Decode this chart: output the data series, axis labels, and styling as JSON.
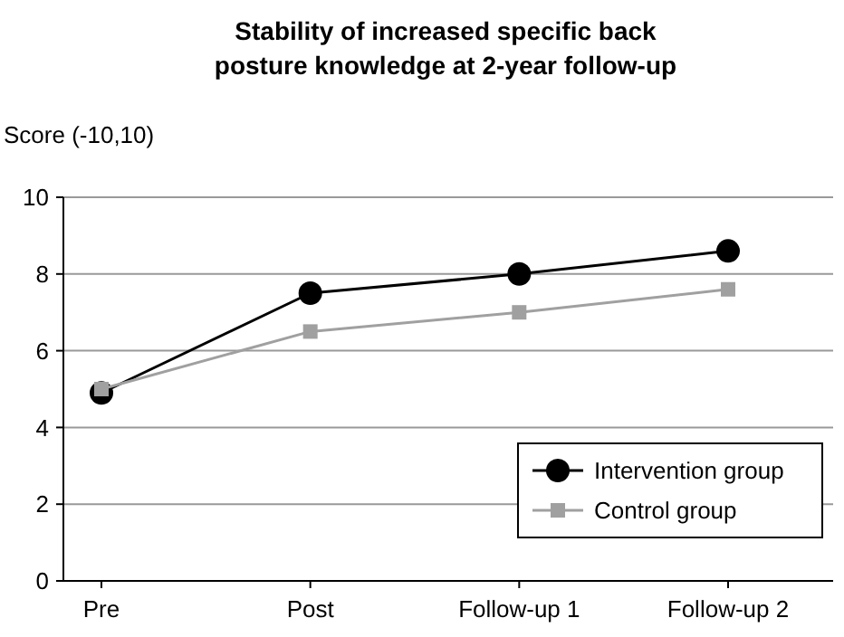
{
  "chart_data": {
    "type": "line",
    "title": "Stability of increased specific back\nposture knowledge at 2-year follow-up",
    "ylabel": "Score (-10,10)",
    "categories": [
      "Pre",
      "Post",
      "Follow-up 1",
      "Follow-up 2"
    ],
    "series": [
      {
        "name": "Intervention group",
        "color": "#000000",
        "marker": "circle",
        "values": [
          4.9,
          7.5,
          8.0,
          8.6
        ]
      },
      {
        "name": "Control group",
        "color": "#a0a0a0",
        "marker": "square",
        "values": [
          5.0,
          6.5,
          7.0,
          7.6
        ]
      }
    ],
    "ylim": [
      0,
      10
    ],
    "yticks": [
      0,
      2,
      4,
      6,
      8,
      10
    ],
    "grid": "y",
    "legend": "bottom right"
  }
}
